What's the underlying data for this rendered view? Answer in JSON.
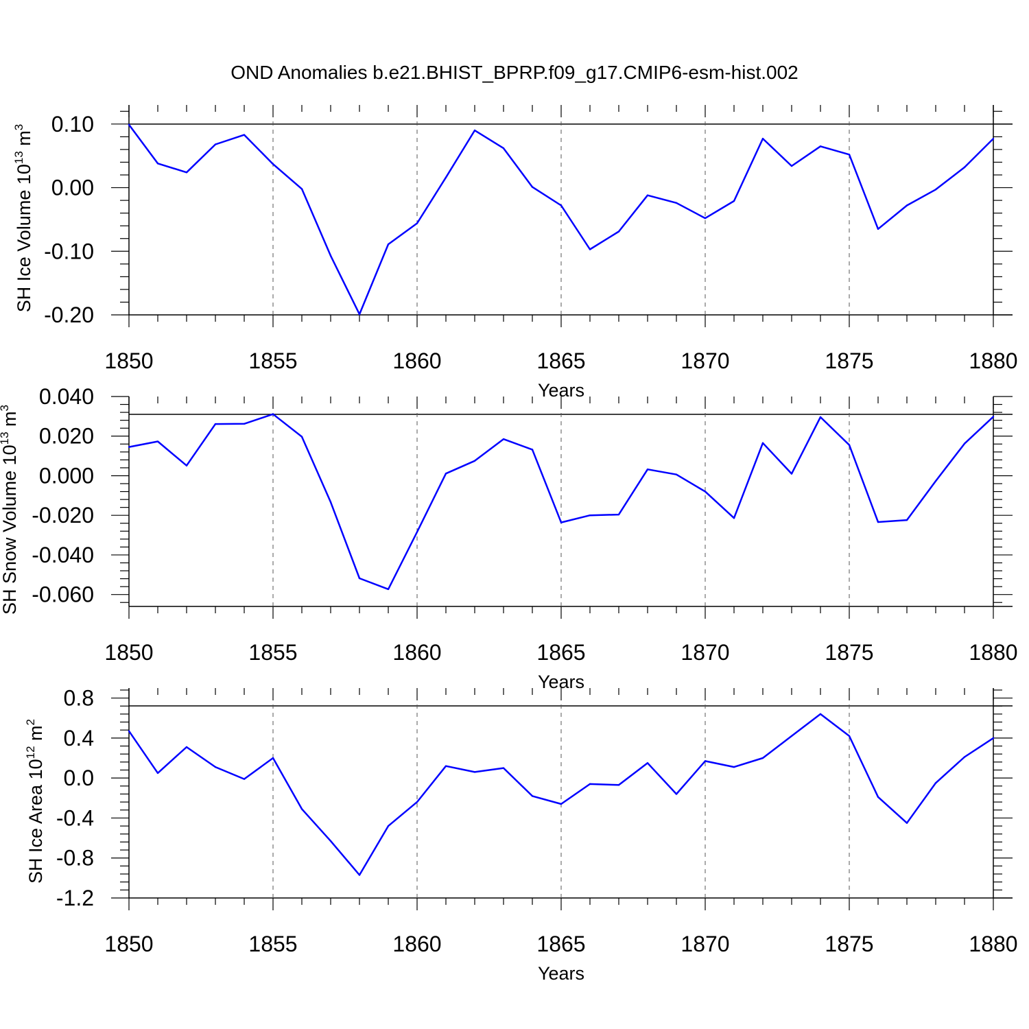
{
  "chart_data": [
    {
      "type": "line",
      "title": "OND Anomalies b.e21.BHIST_BPRP.f09_g17.CMIP6-esm-hist.002",
      "ylabel": {
        "text": "SH Ice Volume 10",
        "exp": "13",
        "unit": " m",
        "unit_exp": "3"
      },
      "xlabel": "Years",
      "xlim": [
        1850,
        1880
      ],
      "ylim": [
        -0.2,
        0.13
      ],
      "yticks": [
        0.1,
        0.0,
        -0.1,
        -0.2
      ],
      "ytick_labels": [
        "0.10",
        "0.00",
        "-0.10",
        "-0.20"
      ],
      "xticks": [
        1850,
        1855,
        1860,
        1865,
        1870,
        1875,
        1880
      ],
      "xtick_labels": [
        "1850",
        "1855",
        "1860",
        "1865",
        "1870",
        "1875",
        "1880"
      ],
      "ref_line": 0.1,
      "line_color": "#0000ff",
      "x": [
        1850,
        1851,
        1852,
        1853,
        1854,
        1855,
        1856,
        1857,
        1858,
        1859,
        1860,
        1861,
        1862,
        1863,
        1864,
        1865,
        1866,
        1867,
        1868,
        1869,
        1870,
        1871,
        1872,
        1873,
        1874,
        1875,
        1876,
        1877,
        1878,
        1879,
        1880
      ],
      "values": [
        0.099,
        0.038,
        0.024,
        0.068,
        0.083,
        0.037,
        -0.002,
        -0.107,
        -0.199,
        -0.089,
        -0.056,
        0.016,
        0.09,
        0.062,
        0.001,
        -0.028,
        -0.097,
        -0.069,
        -0.012,
        -0.024,
        -0.048,
        -0.021,
        0.077,
        0.034,
        0.065,
        0.052,
        -0.065,
        -0.028,
        -0.003,
        0.032,
        0.077
      ]
    },
    {
      "type": "line",
      "ylabel": {
        "text": "SH Snow Volume 10",
        "exp": "13",
        "unit": " m",
        "unit_exp": "3"
      },
      "xlabel": "Years",
      "xlim": [
        1850,
        1880
      ],
      "ylim": [
        -0.066,
        0.04
      ],
      "yticks": [
        0.04,
        0.02,
        0.0,
        -0.02,
        -0.04,
        -0.06
      ],
      "ytick_labels": [
        "0.040",
        "0.020",
        "0.000",
        "-0.020",
        "-0.040",
        "-0.060"
      ],
      "xticks": [
        1850,
        1855,
        1860,
        1865,
        1870,
        1875,
        1880
      ],
      "xtick_labels": [
        "1850",
        "1855",
        "1860",
        "1865",
        "1870",
        "1875",
        "1880"
      ],
      "ref_line": null,
      "line_color": "#0000ff",
      "x": [
        1850,
        1851,
        1852,
        1853,
        1854,
        1855,
        1856,
        1857,
        1858,
        1859,
        1860,
        1861,
        1862,
        1863,
        1864,
        1865,
        1866,
        1867,
        1868,
        1869,
        1870,
        1871,
        1872,
        1873,
        1874,
        1875,
        1876,
        1877,
        1878,
        1879,
        1880
      ],
      "values": [
        0.0145,
        0.0173,
        0.0051,
        0.0261,
        0.0262,
        0.0311,
        0.0197,
        -0.0133,
        -0.0518,
        -0.0573,
        -0.0284,
        0.0011,
        0.0075,
        0.0185,
        0.0132,
        -0.0236,
        -0.02,
        -0.0196,
        0.0032,
        0.0006,
        -0.008,
        -0.0214,
        0.0165,
        0.001,
        0.0296,
        0.0155,
        -0.0234,
        -0.0224,
        -0.0027,
        0.0162,
        0.0298
      ]
    },
    {
      "type": "line",
      "ylabel": {
        "text": "SH Ice Area 10",
        "exp": "12",
        "unit": " m",
        "unit_exp": "2"
      },
      "xlabel": "Years",
      "xlim": [
        1850,
        1880
      ],
      "ylim": [
        -1.2,
        0.9
      ],
      "yticks": [
        0.8,
        0.4,
        0.0,
        -0.4,
        -0.8,
        -1.2
      ],
      "ytick_labels": [
        "0.8",
        "0.4",
        "0.0",
        "-0.4",
        "-0.8",
        "-1.2"
      ],
      "xticks": [
        1850,
        1855,
        1860,
        1865,
        1870,
        1875,
        1880
      ],
      "xtick_labels": [
        "1850",
        "1855",
        "1860",
        "1865",
        "1870",
        "1875",
        "1880"
      ],
      "ref_line": null,
      "line_color": "#0000ff",
      "x": [
        1850,
        1851,
        1852,
        1853,
        1854,
        1855,
        1856,
        1857,
        1858,
        1859,
        1860,
        1861,
        1862,
        1863,
        1864,
        1865,
        1866,
        1867,
        1868,
        1869,
        1870,
        1871,
        1872,
        1873,
        1874,
        1875,
        1876,
        1877,
        1878,
        1879,
        1880
      ],
      "values": [
        0.47,
        0.05,
        0.31,
        0.11,
        -0.01,
        0.2,
        -0.31,
        -0.63,
        -0.97,
        -0.48,
        -0.24,
        0.12,
        0.06,
        0.1,
        -0.18,
        -0.26,
        -0.06,
        -0.07,
        0.15,
        -0.16,
        0.17,
        0.11,
        0.2,
        0.42,
        0.64,
        0.42,
        -0.19,
        -0.45,
        -0.05,
        0.21,
        0.4
      ]
    }
  ]
}
